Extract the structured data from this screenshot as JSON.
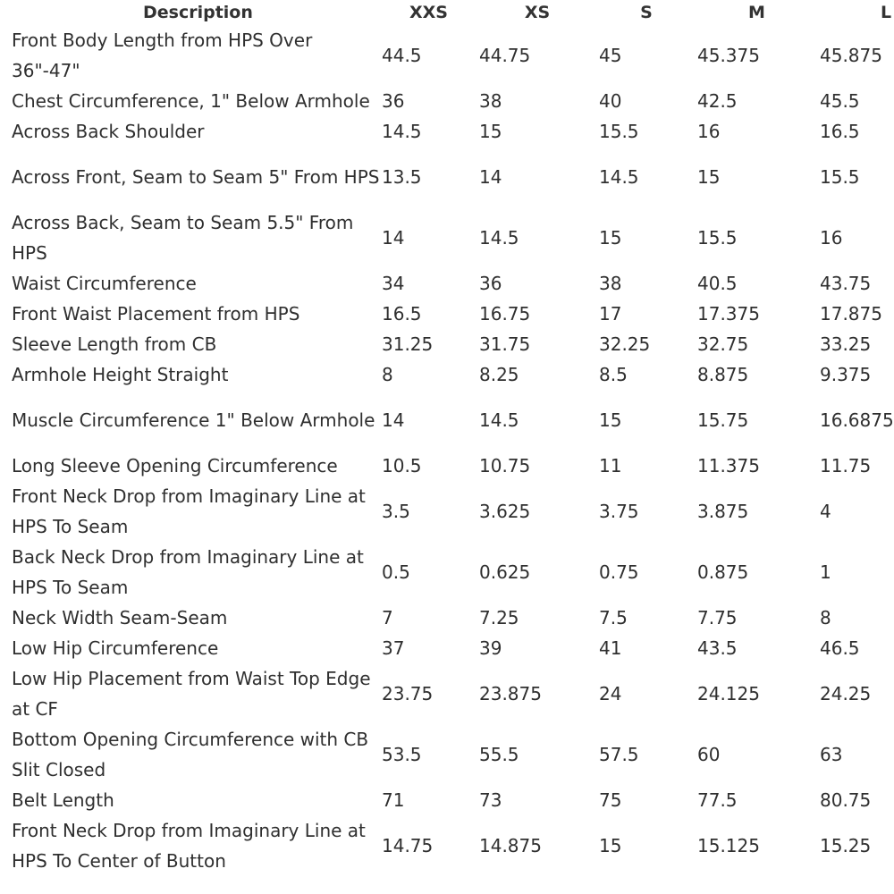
{
  "table": {
    "headers": [
      "Description",
      "XXS",
      "XS",
      "S",
      "M",
      "L"
    ],
    "rows": [
      {
        "description": "Front Body Length from HPS Over 36\"-47\"",
        "values": [
          "44.5",
          "44.75",
          "45",
          "45.375",
          "45.875"
        ]
      },
      {
        "description": "Chest Circumference, 1\" Below Armhole",
        "values": [
          "36",
          "38",
          "40",
          "42.5",
          "45.5"
        ]
      },
      {
        "description": "Across Back Shoulder",
        "values": [
          "14.5",
          "15",
          "15.5",
          "16",
          "16.5"
        ]
      },
      {
        "description": "Across Front, Seam to Seam 5\" From HPS",
        "values": [
          "13.5",
          "14",
          "14.5",
          "15",
          "15.5"
        ]
      },
      {
        "description": "Across Back, Seam to Seam 5.5\" From HPS",
        "values": [
          "14",
          "14.5",
          "15",
          "15.5",
          "16"
        ]
      },
      {
        "description": "Waist Circumference",
        "values": [
          "34",
          "36",
          "38",
          "40.5",
          "43.75"
        ]
      },
      {
        "description": "Front Waist Placement from HPS",
        "values": [
          "16.5",
          "16.75",
          "17",
          "17.375",
          "17.875"
        ]
      },
      {
        "description": "Sleeve Length from CB",
        "values": [
          "31.25",
          "31.75",
          "32.25",
          "32.75",
          "33.25"
        ]
      },
      {
        "description": "Armhole Height Straight",
        "values": [
          "8",
          "8.25",
          "8.5",
          "8.875",
          "9.375"
        ]
      },
      {
        "description": "Muscle Circumference 1\" Below Armhole",
        "values": [
          "14",
          "14.5",
          "15",
          "15.75",
          "16.6875"
        ]
      },
      {
        "description": "Long Sleeve Opening Circumference",
        "values": [
          "10.5",
          "10.75",
          "11",
          "11.375",
          "11.75"
        ]
      },
      {
        "description": "Front Neck Drop from Imaginary Line at HPS To Seam",
        "values": [
          "3.5",
          "3.625",
          "3.75",
          "3.875",
          "4"
        ]
      },
      {
        "description": "Back Neck Drop from Imaginary Line at HPS To Seam",
        "values": [
          "0.5",
          "0.625",
          "0.75",
          "0.875",
          "1"
        ]
      },
      {
        "description": "Neck Width Seam-Seam",
        "values": [
          "7",
          "7.25",
          "7.5",
          "7.75",
          "8"
        ]
      },
      {
        "description": "Low Hip Circumference",
        "values": [
          "37",
          "39",
          "41",
          "43.5",
          "46.5"
        ]
      },
      {
        "description": "Low Hip Placement from Waist Top Edge at CF",
        "values": [
          "23.75",
          "23.875",
          "24",
          "24.125",
          "24.25"
        ]
      },
      {
        "description": "Bottom Opening Circumference with CB Slit Closed",
        "values": [
          "53.5",
          "55.5",
          "57.5",
          "60",
          "63"
        ]
      },
      {
        "description": "Belt Length",
        "values": [
          "71",
          "73",
          "75",
          "77.5",
          "80.75"
        ]
      },
      {
        "description": "Front Neck Drop from Imaginary Line at HPS To Center of Button",
        "values": [
          "14.75",
          "14.875",
          "15",
          "15.125",
          "15.25"
        ]
      }
    ]
  }
}
